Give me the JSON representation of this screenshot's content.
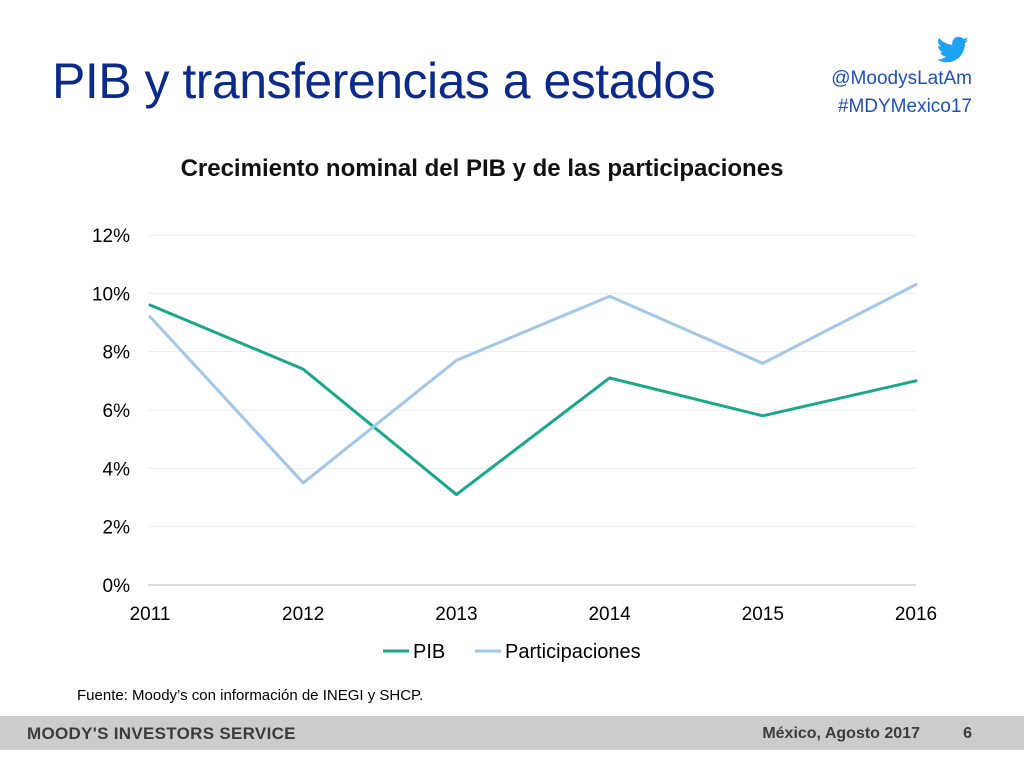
{
  "header": {
    "title": "PIB y transferencias a estados",
    "twitter_handle": "@MoodysLatAm",
    "hashtag": "#MDYMexico17",
    "twitter_icon": "twitter-bird-icon",
    "accent_color": "#0b2a8a",
    "link_color": "#1f4fbf"
  },
  "chart_data": {
    "type": "line",
    "title": "Crecimiento nominal del PIB y de las participaciones",
    "xlabel": "",
    "ylabel": "",
    "x": [
      "2011",
      "2012",
      "2013",
      "2014",
      "2015",
      "2016"
    ],
    "series": [
      {
        "name": "PIB",
        "color": "#1aa88a",
        "values": [
          9.6,
          7.4,
          3.1,
          7.1,
          5.8,
          7.0
        ]
      },
      {
        "name": "Participaciones",
        "color": "#a3c7e6",
        "values": [
          9.2,
          3.5,
          7.7,
          9.9,
          7.6,
          10.3
        ]
      }
    ],
    "ylim": [
      0,
      12
    ],
    "yticks": [
      0,
      2,
      4,
      6,
      8,
      10,
      12
    ],
    "ytick_labels": [
      "0%",
      "2%",
      "4%",
      "6%",
      "8%",
      "10%",
      "12%"
    ],
    "grid": true,
    "legend_position": "bottom"
  },
  "source": {
    "text": "Fuente: Moody’s con información de INEGI y SHCP."
  },
  "footer": {
    "brand": "MOODY'S INVESTORS SERVICE",
    "date": "México, Agosto 2017",
    "page_number": "6"
  }
}
